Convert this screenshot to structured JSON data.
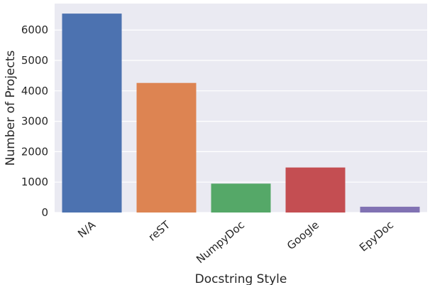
{
  "chart_data": {
    "type": "bar",
    "title": "",
    "xlabel": "Docstring Style",
    "ylabel": "Number of Projects",
    "categories": [
      "N/A",
      "reST",
      "NumpyDoc",
      "Google",
      "EpyDoc"
    ],
    "values": [
      6540,
      4260,
      950,
      1480,
      190
    ],
    "bar_colors": [
      "#4c72b0",
      "#dd8452",
      "#55a868",
      "#c44e52",
      "#8172b3"
    ],
    "yticks": [
      0,
      1000,
      2000,
      3000,
      4000,
      5000,
      6000
    ],
    "ylim": [
      0,
      6870
    ],
    "grid": true,
    "background_color": "#eaeaf2",
    "grid_color": "#ffffff",
    "x_tick_rotation_deg": 40
  }
}
